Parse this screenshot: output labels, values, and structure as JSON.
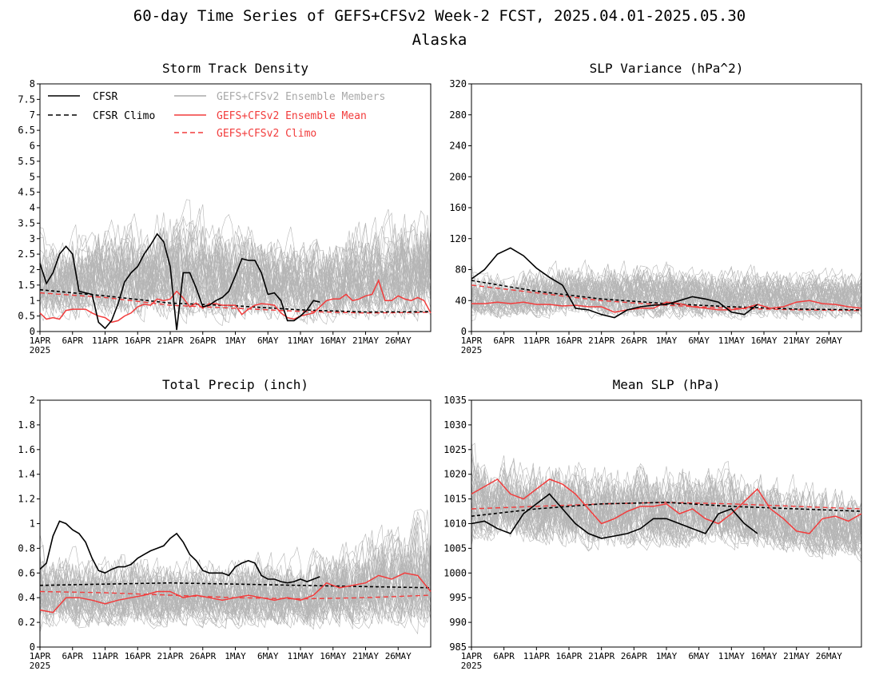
{
  "page": {
    "title_line1": "60-day Time Series of GEFS+CFSv2 Week-2 FCST, 2025.04.01-2025.05.30",
    "title_line2": "Alaska"
  },
  "legend": {
    "cfsr": "CFSR",
    "cfsr_climo": "CFSR Climo",
    "members": "GEFS+CFSv2 Ensemble Members",
    "ens_mean": "GEFS+CFSv2 Ensemble Mean",
    "gefs_climo": "GEFS+CFSv2 Climo"
  },
  "colors": {
    "cfsr": "#000000",
    "members": "#a9a9a9",
    "ens_mean": "#f23c3c",
    "gefs_climo": "#f23c3c"
  },
  "x_axis": {
    "ticks": [
      "1APR",
      "6APR",
      "11APR",
      "16APR",
      "21APR",
      "26APR",
      "1MAY",
      "6MAY",
      "11MAY",
      "16MAY",
      "21MAY",
      "26MAY"
    ],
    "tick_days": [
      0,
      5,
      10,
      15,
      20,
      25,
      30,
      35,
      40,
      45,
      50,
      55
    ],
    "year_label": "2025",
    "range_days": [
      0,
      60
    ]
  },
  "chart_data": [
    {
      "type": "line",
      "title": "Storm Track Density",
      "ylim": [
        0,
        8
      ],
      "yticks": [
        "0",
        "0.5",
        "1",
        "1.5",
        "2",
        "2.5",
        "3",
        "3.5",
        "4",
        "4.5",
        "5",
        "5.5",
        "6",
        "6.5",
        "7",
        "7.5",
        "8"
      ],
      "ytick_values": [
        0,
        0.5,
        1,
        1.5,
        2,
        2.5,
        3,
        3.5,
        4,
        4.5,
        5,
        5.5,
        6,
        6.5,
        7,
        7.5,
        8
      ],
      "members_band": {
        "low": [
          0.05,
          0.08,
          0.03,
          0.05
        ],
        "high": [
          3.6,
          4.9,
          3.8,
          5.2
        ]
      },
      "series": {
        "cfsr": {
          "x": [
            0,
            1,
            2,
            3,
            4,
            5,
            6,
            7,
            8,
            9,
            10,
            11,
            12,
            13,
            14,
            15,
            16,
            17,
            18,
            19,
            20,
            21,
            22,
            23,
            24,
            25,
            26,
            27,
            28,
            29,
            30,
            31,
            32,
            33,
            34,
            35,
            36,
            37,
            38,
            39,
            40,
            41,
            42,
            43
          ],
          "y": [
            2.2,
            1.55,
            1.9,
            2.5,
            2.75,
            2.5,
            1.3,
            1.25,
            1.2,
            0.3,
            0.1,
            0.35,
            0.9,
            1.6,
            1.9,
            2.1,
            2.5,
            2.8,
            3.15,
            2.9,
            2.1,
            0.05,
            1.9,
            1.9,
            1.4,
            0.8,
            0.85,
            1.0,
            1.1,
            1.3,
            1.8,
            2.35,
            2.3,
            2.3,
            1.9,
            1.2,
            1.25,
            1.0,
            0.35,
            0.35,
            0.5,
            0.7,
            1.0,
            0.95
          ]
        },
        "cfsr_climo": {
          "x": [
            0,
            10,
            20,
            30,
            40,
            50,
            60
          ],
          "y": [
            1.35,
            1.15,
            0.92,
            0.83,
            0.7,
            0.63,
            0.64
          ]
        },
        "ens_mean": {
          "x": [
            0,
            1,
            2,
            3,
            4,
            5,
            6,
            7,
            8,
            9,
            10,
            11,
            12,
            13,
            14,
            15,
            16,
            17,
            18,
            19,
            20,
            21,
            22,
            23,
            24,
            25,
            26,
            27,
            28,
            29,
            30,
            31,
            32,
            33,
            34,
            35,
            36,
            37,
            38,
            39,
            40,
            41,
            42,
            43,
            44,
            45,
            46,
            47,
            48,
            49,
            50,
            51,
            52,
            53,
            54,
            55,
            56,
            57,
            58,
            59,
            60
          ],
          "y": [
            0.6,
            0.4,
            0.45,
            0.4,
            0.68,
            0.72,
            0.72,
            0.72,
            0.6,
            0.5,
            0.45,
            0.3,
            0.35,
            0.5,
            0.6,
            0.8,
            0.88,
            0.85,
            1.05,
            1.0,
            1.05,
            1.3,
            1.08,
            0.8,
            0.92,
            0.75,
            0.9,
            0.9,
            0.85,
            0.85,
            0.85,
            0.55,
            0.72,
            0.85,
            0.9,
            0.88,
            0.85,
            0.6,
            0.45,
            0.4,
            0.5,
            0.55,
            0.6,
            0.8,
            1.0,
            1.05,
            1.05,
            1.2,
            1.0,
            1.05,
            1.15,
            1.2,
            1.65,
            1.0,
            1.0,
            1.15,
            1.05,
            1.0,
            1.1,
            1.0,
            0.6
          ]
        },
        "gefs_climo": {
          "x": [
            0,
            10,
            20,
            30,
            40,
            50,
            60
          ],
          "y": [
            1.25,
            1.1,
            0.85,
            0.75,
            0.65,
            0.6,
            0.62
          ]
        }
      }
    },
    {
      "type": "line",
      "title": "SLP Variance (hPa^2)",
      "ylim": [
        0,
        320
      ],
      "yticks": [
        "0",
        "40",
        "80",
        "120",
        "160",
        "200",
        "240",
        "280",
        "320"
      ],
      "ytick_values": [
        0,
        40,
        80,
        120,
        160,
        200,
        240,
        280,
        320
      ],
      "members_band": {
        "low": [
          12,
          10,
          10,
          12
        ],
        "high": [
          90,
          110,
          100,
          95
        ]
      },
      "series": {
        "cfsr": {
          "x": [
            0,
            2,
            4,
            6,
            8,
            10,
            12,
            14,
            16,
            18,
            20,
            22,
            24,
            26,
            28,
            30,
            32,
            34,
            36,
            38,
            40,
            42,
            44
          ],
          "y": [
            68,
            80,
            100,
            108,
            98,
            82,
            70,
            60,
            30,
            28,
            22,
            18,
            28,
            32,
            34,
            35,
            40,
            45,
            42,
            38,
            25,
            22,
            35
          ]
        },
        "cfsr_climo": {
          "x": [
            0,
            10,
            20,
            30,
            40,
            50,
            60
          ],
          "y": [
            66,
            52,
            42,
            36,
            32,
            29,
            28
          ]
        },
        "ens_mean": {
          "x": [
            0,
            2,
            4,
            6,
            8,
            10,
            12,
            14,
            16,
            18,
            20,
            22,
            24,
            26,
            28,
            30,
            32,
            34,
            36,
            38,
            40,
            42,
            44,
            46,
            48,
            50,
            52,
            54,
            56,
            58,
            60
          ],
          "y": [
            36,
            36,
            38,
            36,
            38,
            35,
            35,
            33,
            34,
            32,
            32,
            25,
            28,
            30,
            30,
            38,
            36,
            32,
            30,
            28,
            28,
            30,
            35,
            30,
            32,
            38,
            40,
            36,
            35,
            32,
            30
          ]
        },
        "gefs_climo": {
          "x": [
            0,
            10,
            20,
            30,
            40,
            50,
            60
          ],
          "y": [
            60,
            50,
            40,
            34,
            30,
            28,
            27
          ]
        }
      }
    },
    {
      "type": "line",
      "title": "Total Precip (inch)",
      "ylim": [
        0,
        2
      ],
      "yticks": [
        "0",
        "0.2",
        "0.4",
        "0.6",
        "0.8",
        "1",
        "1.2",
        "1.4",
        "1.6",
        "1.8",
        "2"
      ],
      "ytick_values": [
        0,
        0.2,
        0.4,
        0.6,
        0.8,
        1,
        1.2,
        1.4,
        1.6,
        1.8,
        2
      ],
      "members_band": {
        "low": [
          0.1,
          0.12,
          0.1,
          0.05
        ],
        "high": [
          0.95,
          0.85,
          0.9,
          1.35
        ]
      },
      "series": {
        "cfsr": {
          "x": [
            0,
            1,
            2,
            3,
            4,
            5,
            6,
            7,
            8,
            9,
            10,
            11,
            12,
            13,
            14,
            15,
            16,
            17,
            18,
            19,
            20,
            21,
            22,
            23,
            24,
            25,
            26,
            27,
            28,
            29,
            30,
            31,
            32,
            33,
            34,
            35,
            36,
            37,
            38,
            39,
            40,
            41,
            42,
            43
          ],
          "y": [
            0.63,
            0.68,
            0.9,
            1.02,
            1.0,
            0.95,
            0.92,
            0.85,
            0.72,
            0.62,
            0.6,
            0.63,
            0.65,
            0.65,
            0.67,
            0.72,
            0.75,
            0.78,
            0.8,
            0.82,
            0.88,
            0.92,
            0.85,
            0.75,
            0.7,
            0.62,
            0.6,
            0.6,
            0.6,
            0.58,
            0.65,
            0.68,
            0.7,
            0.68,
            0.58,
            0.55,
            0.55,
            0.53,
            0.52,
            0.53,
            0.55,
            0.53,
            0.55,
            0.57
          ]
        },
        "cfsr_climo": {
          "x": [
            0,
            10,
            20,
            30,
            40,
            50,
            60
          ],
          "y": [
            0.5,
            0.51,
            0.52,
            0.51,
            0.5,
            0.49,
            0.48
          ]
        },
        "ens_mean": {
          "x": [
            0,
            2,
            4,
            6,
            8,
            10,
            12,
            14,
            16,
            18,
            20,
            22,
            24,
            26,
            28,
            30,
            32,
            34,
            36,
            38,
            40,
            42,
            44,
            46,
            48,
            50,
            52,
            54,
            56,
            58,
            60
          ],
          "y": [
            0.3,
            0.28,
            0.4,
            0.4,
            0.38,
            0.35,
            0.38,
            0.4,
            0.42,
            0.45,
            0.45,
            0.4,
            0.42,
            0.4,
            0.38,
            0.4,
            0.42,
            0.4,
            0.38,
            0.4,
            0.38,
            0.42,
            0.52,
            0.48,
            0.5,
            0.52,
            0.58,
            0.55,
            0.6,
            0.58,
            0.45
          ]
        },
        "gefs_climo": {
          "x": [
            0,
            10,
            20,
            30,
            40,
            50,
            60
          ],
          "y": [
            0.45,
            0.44,
            0.42,
            0.4,
            0.39,
            0.4,
            0.42
          ]
        }
      }
    },
    {
      "type": "line",
      "title": "Mean SLP (hPa)",
      "ylim": [
        985,
        1035
      ],
      "yticks": [
        "985",
        "990",
        "995",
        "1000",
        "1005",
        "1010",
        "1015",
        "1020",
        "1025",
        "1030",
        "1035"
      ],
      "ytick_values": [
        985,
        990,
        995,
        1000,
        1005,
        1010,
        1015,
        1020,
        1025,
        1030,
        1035
      ],
      "members_band": {
        "low": [
          1005,
          1003,
          1004,
          1001
        ],
        "high": [
          1028,
          1027,
          1026,
          1020
        ]
      },
      "series": {
        "cfsr": {
          "x": [
            0,
            2,
            4,
            6,
            8,
            10,
            12,
            14,
            16,
            18,
            20,
            22,
            24,
            26,
            28,
            30,
            32,
            34,
            36,
            38,
            40,
            42,
            44
          ],
          "y": [
            1010,
            1010.5,
            1009,
            1008,
            1012,
            1014,
            1016,
            1013,
            1010,
            1008,
            1007,
            1007.5,
            1008,
            1009,
            1011,
            1011,
            1010,
            1009,
            1008,
            1012,
            1013,
            1010,
            1008
          ]
        },
        "cfsr_climo": {
          "x": [
            0,
            10,
            20,
            30,
            40,
            50,
            60
          ],
          "y": [
            1011.5,
            1013,
            1014,
            1014.3,
            1013.5,
            1013,
            1012.5
          ]
        },
        "ens_mean": {
          "x": [
            0,
            2,
            4,
            6,
            8,
            10,
            12,
            14,
            16,
            18,
            20,
            22,
            24,
            26,
            28,
            30,
            32,
            34,
            36,
            38,
            40,
            42,
            44,
            46,
            48,
            50,
            52,
            54,
            56,
            58,
            60
          ],
          "y": [
            1016,
            1017.5,
            1019,
            1016,
            1015,
            1017,
            1019,
            1018,
            1016,
            1013,
            1010,
            1011,
            1012.5,
            1013.5,
            1013.5,
            1014,
            1012,
            1013,
            1011,
            1010,
            1012,
            1014.5,
            1017,
            1013,
            1011,
            1008.5,
            1008,
            1011,
            1011.5,
            1010.5,
            1012
          ]
        },
        "gefs_climo": {
          "x": [
            0,
            10,
            20,
            30,
            40,
            50,
            60
          ],
          "y": [
            1013,
            1013.5,
            1014,
            1014.3,
            1014,
            1013.5,
            1013
          ]
        }
      }
    }
  ]
}
